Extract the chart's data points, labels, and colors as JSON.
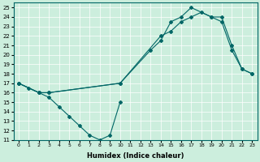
{
  "xlabel": "Humidex (Indice chaleur)",
  "ylabel": "",
  "xlim": [
    -0.5,
    23.5
  ],
  "ylim": [
    11,
    25.5
  ],
  "yticks": [
    11,
    12,
    13,
    14,
    15,
    16,
    17,
    18,
    19,
    20,
    21,
    22,
    23,
    24,
    25
  ],
  "xticks": [
    0,
    1,
    2,
    3,
    4,
    5,
    6,
    7,
    8,
    9,
    10,
    11,
    12,
    13,
    14,
    15,
    16,
    17,
    18,
    19,
    20,
    21,
    22,
    23
  ],
  "bg_color": "#cceedd",
  "line_color": "#006666",
  "lines": [
    {
      "x": [
        0,
        1,
        2,
        3,
        4,
        5,
        6,
        7,
        8,
        9,
        10
      ],
      "y": [
        17,
        16.5,
        16,
        15.5,
        14.5,
        13.5,
        12.5,
        11.5,
        11,
        11.5,
        15
      ]
    },
    {
      "x": [
        0,
        2,
        3,
        10,
        13,
        14,
        15,
        16,
        17,
        19,
        20,
        21,
        22,
        23
      ],
      "y": [
        17,
        16,
        16,
        17,
        20.5,
        21.5,
        23.5,
        24,
        25,
        24,
        23.5,
        20.5,
        18.5,
        18
      ]
    },
    {
      "x": [
        0,
        2,
        3,
        10,
        14,
        15,
        16,
        17,
        18,
        19,
        20,
        21,
        22,
        23
      ],
      "y": [
        17,
        16,
        16,
        17,
        22,
        22.5,
        23.5,
        24,
        24.5,
        24,
        24,
        21,
        18.5,
        18
      ]
    }
  ]
}
